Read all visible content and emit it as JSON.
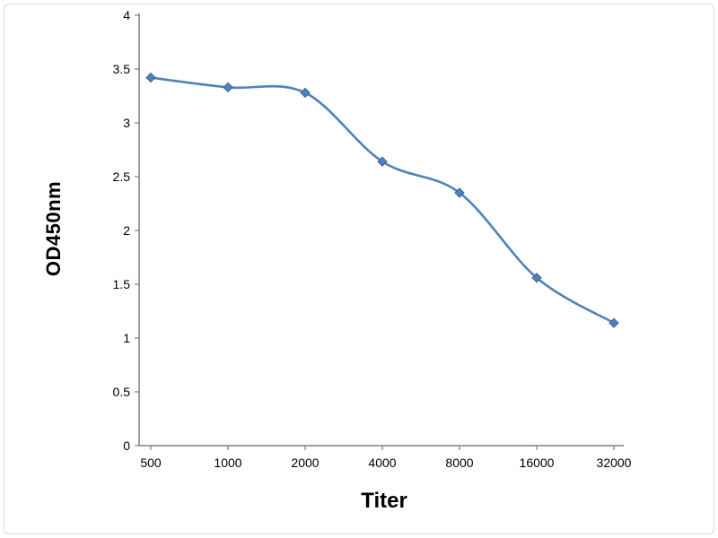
{
  "frame": {
    "background": "#ffffff",
    "border_color": "#d9d9d9"
  },
  "chart_data": {
    "type": "line",
    "title": "",
    "xlabel": "Titer",
    "ylabel": "OD450nm",
    "categories": [
      "500",
      "1000",
      "2000",
      "4000",
      "8000",
      "16000",
      "32000"
    ],
    "x_values": [
      500,
      1000,
      2000,
      4000,
      8000,
      16000,
      32000
    ],
    "series": [
      {
        "name": "OD450nm",
        "values": [
          3.42,
          3.33,
          3.28,
          2.64,
          2.35,
          1.56,
          1.14
        ]
      }
    ],
    "ylim": [
      0,
      4
    ],
    "ytick_step": 0.5,
    "ytick_labels": [
      "0",
      "0.5",
      "1",
      "1.5",
      "2",
      "2.5",
      "3",
      "3.5",
      "4"
    ],
    "grid": false,
    "legend": false,
    "x_scale": "log-category",
    "line_color": "#4f81bd",
    "marker": "diamond",
    "marker_color": "#4f81bd",
    "axis_color": "#7f7f7f",
    "tick_label_color": "#000000",
    "tick_label_size": 14
  }
}
